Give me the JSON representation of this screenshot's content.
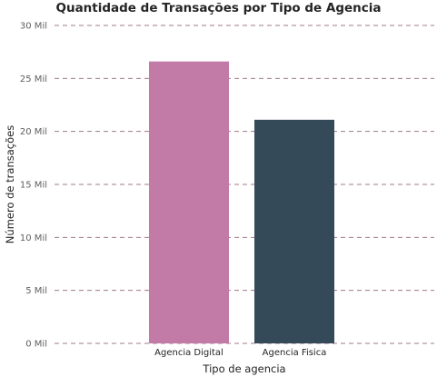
{
  "chart_data": {
    "type": "bar",
    "title": "Quantidade de Transações por Tipo de Agencia",
    "xlabel": "Tipo de agencia",
    "ylabel": "Número de transações",
    "categories": [
      "Agencia Digital",
      "Agencia Fisica"
    ],
    "values": [
      26600,
      21100
    ],
    "colors": [
      "#c27ba6",
      "#344a59"
    ],
    "ylim": [
      0,
      30000
    ],
    "yticks": [
      0,
      5000,
      10000,
      15000,
      20000,
      25000,
      30000
    ],
    "ytick_labels": [
      "0 Mil",
      "5 Mil",
      "10 Mil",
      "15 Mil",
      "20 Mil",
      "25 Mil",
      "30 Mil"
    ],
    "grid": true,
    "grid_color": "#a07a8a",
    "legend": "none"
  }
}
